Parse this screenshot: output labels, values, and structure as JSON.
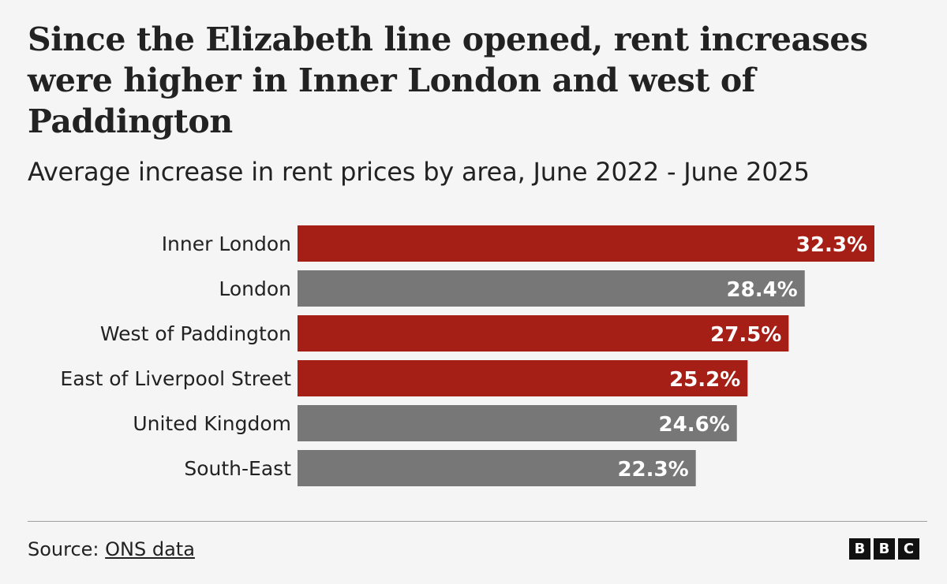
{
  "title": "Since the Elizabeth line opened, rent increases were higher in Inner London and west of Paddington",
  "subtitle": "Average increase in rent prices by area, June 2022 - June 2025",
  "source": {
    "prefix": "Source: ",
    "link_text": "ONS data"
  },
  "logo": {
    "letters": [
      "B",
      "B",
      "C"
    ]
  },
  "colors": {
    "highlight": "#a61f16",
    "default": "#777777",
    "value_label": "#ffffff"
  },
  "chart_data": {
    "type": "bar",
    "orientation": "horizontal",
    "title": "Since the Elizabeth line opened, rent increases were higher in Inner London and west of Paddington",
    "subtitle": "Average increase in rent prices by area, June 2022 - June 2025",
    "categories": [
      "Inner London",
      "London",
      "West of Paddington",
      "East of Liverpool Street",
      "United Kingdom",
      "South-East"
    ],
    "values": [
      32.3,
      28.4,
      27.5,
      25.2,
      24.6,
      22.3
    ],
    "value_labels": [
      "32.3%",
      "28.4%",
      "27.5%",
      "25.2%",
      "24.6%",
      "22.3%"
    ],
    "highlighted": [
      true,
      false,
      true,
      true,
      false,
      false
    ],
    "unit": "%",
    "xlim": [
      0,
      32.3
    ],
    "grid": false,
    "legend": "none"
  }
}
